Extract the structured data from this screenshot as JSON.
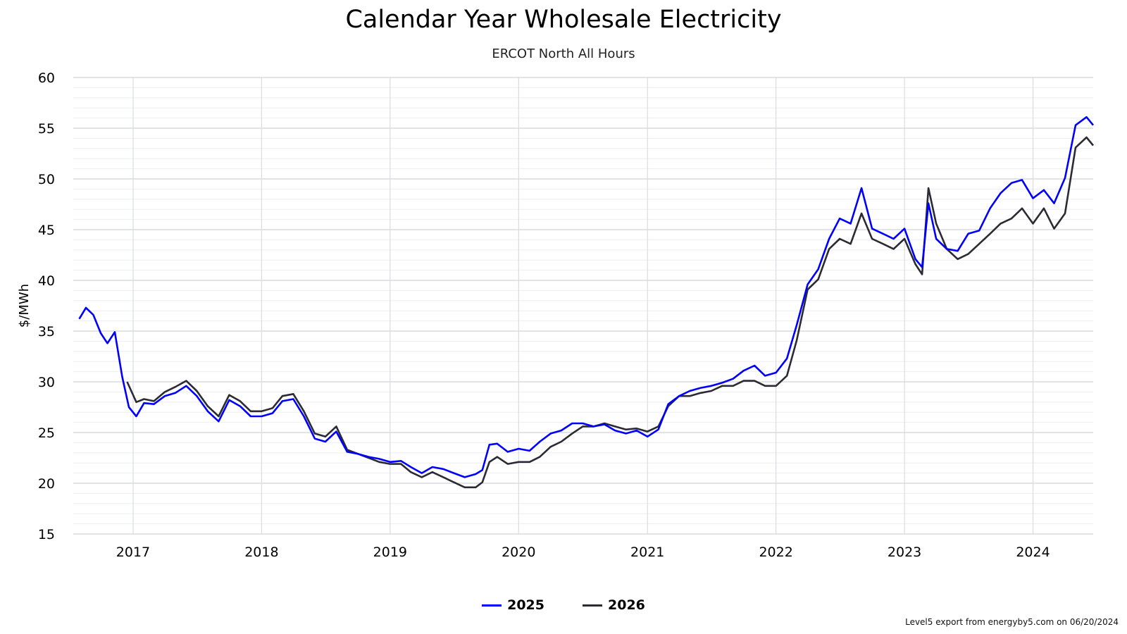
{
  "chart_data": {
    "type": "line",
    "title": "Calendar Year Wholesale Electricity",
    "subtitle": "ERCOT North All Hours",
    "xlabel": "",
    "ylabel": "$/MWh",
    "ylim": [
      15,
      60
    ],
    "yticks": [
      "15",
      "20",
      "25",
      "30",
      "35",
      "40",
      "45",
      "50",
      "55",
      "60"
    ],
    "xlim": [
      "2016-07-15",
      "2024-06-20"
    ],
    "xticks": [
      "2017",
      "2018",
      "2019",
      "2020",
      "2021",
      "2022",
      "2023",
      "2024"
    ],
    "grid": true,
    "legend_position": "bottom-center",
    "series": [
      {
        "name": "2025",
        "color": "#0000ff",
        "points": [
          [
            "2016-08-01",
            36.2
          ],
          [
            "2016-08-20",
            37.3
          ],
          [
            "2016-09-10",
            36.6
          ],
          [
            "2016-10-01",
            34.8
          ],
          [
            "2016-10-20",
            33.8
          ],
          [
            "2016-11-10",
            34.9
          ],
          [
            "2016-12-01",
            30.5
          ],
          [
            "2016-12-20",
            27.5
          ],
          [
            "2017-01-10",
            26.6
          ],
          [
            "2017-02-01",
            27.9
          ],
          [
            "2017-03-01",
            27.8
          ],
          [
            "2017-04-01",
            28.6
          ],
          [
            "2017-05-01",
            28.9
          ],
          [
            "2017-06-01",
            29.6
          ],
          [
            "2017-07-01",
            28.6
          ],
          [
            "2017-08-01",
            27.1
          ],
          [
            "2017-09-01",
            26.1
          ],
          [
            "2017-10-01",
            28.2
          ],
          [
            "2017-11-01",
            27.6
          ],
          [
            "2017-12-01",
            26.6
          ],
          [
            "2018-01-01",
            26.6
          ],
          [
            "2018-02-01",
            26.9
          ],
          [
            "2018-03-01",
            28.1
          ],
          [
            "2018-04-01",
            28.3
          ],
          [
            "2018-05-01",
            26.6
          ],
          [
            "2018-06-01",
            24.4
          ],
          [
            "2018-07-01",
            24.1
          ],
          [
            "2018-08-01",
            25.1
          ],
          [
            "2018-09-01",
            23.1
          ],
          [
            "2018-10-01",
            22.9
          ],
          [
            "2018-11-01",
            22.6
          ],
          [
            "2018-12-01",
            22.4
          ],
          [
            "2019-01-01",
            22.1
          ],
          [
            "2019-02-01",
            22.2
          ],
          [
            "2019-03-01",
            21.6
          ],
          [
            "2019-04-01",
            21.0
          ],
          [
            "2019-05-01",
            21.6
          ],
          [
            "2019-06-01",
            21.4
          ],
          [
            "2019-07-01",
            21.0
          ],
          [
            "2019-08-01",
            20.6
          ],
          [
            "2019-09-01",
            20.9
          ],
          [
            "2019-09-20",
            21.3
          ],
          [
            "2019-10-10",
            23.8
          ],
          [
            "2019-11-01",
            23.9
          ],
          [
            "2019-12-01",
            23.1
          ],
          [
            "2020-01-01",
            23.4
          ],
          [
            "2020-02-01",
            23.2
          ],
          [
            "2020-03-01",
            24.1
          ],
          [
            "2020-04-01",
            24.9
          ],
          [
            "2020-05-01",
            25.2
          ],
          [
            "2020-06-01",
            25.9
          ],
          [
            "2020-07-01",
            25.9
          ],
          [
            "2020-08-01",
            25.6
          ],
          [
            "2020-09-01",
            25.8
          ],
          [
            "2020-10-01",
            25.2
          ],
          [
            "2020-11-01",
            24.9
          ],
          [
            "2020-12-01",
            25.2
          ],
          [
            "2021-01-01",
            24.6
          ],
          [
            "2021-02-01",
            25.3
          ],
          [
            "2021-03-01",
            27.8
          ],
          [
            "2021-04-01",
            28.6
          ],
          [
            "2021-05-01",
            29.1
          ],
          [
            "2021-06-01",
            29.4
          ],
          [
            "2021-07-01",
            29.6
          ],
          [
            "2021-08-01",
            29.9
          ],
          [
            "2021-09-01",
            30.3
          ],
          [
            "2021-10-01",
            31.1
          ],
          [
            "2021-11-01",
            31.6
          ],
          [
            "2021-12-01",
            30.6
          ],
          [
            "2022-01-01",
            30.9
          ],
          [
            "2022-02-01",
            32.3
          ],
          [
            "2022-03-01",
            35.6
          ],
          [
            "2022-04-01",
            39.6
          ],
          [
            "2022-05-01",
            41.1
          ],
          [
            "2022-06-01",
            44.1
          ],
          [
            "2022-07-01",
            46.1
          ],
          [
            "2022-08-01",
            45.6
          ],
          [
            "2022-09-01",
            49.1
          ],
          [
            "2022-10-01",
            45.1
          ],
          [
            "2022-11-01",
            44.6
          ],
          [
            "2022-12-01",
            44.1
          ],
          [
            "2023-01-01",
            45.1
          ],
          [
            "2023-02-01",
            42.1
          ],
          [
            "2023-02-20",
            41.3
          ],
          [
            "2023-03-10",
            47.6
          ],
          [
            "2023-04-01",
            44.1
          ],
          [
            "2023-05-01",
            43.1
          ],
          [
            "2023-06-01",
            42.9
          ],
          [
            "2023-07-01",
            44.6
          ],
          [
            "2023-08-01",
            44.9
          ],
          [
            "2023-09-01",
            47.1
          ],
          [
            "2023-10-01",
            48.6
          ],
          [
            "2023-11-01",
            49.6
          ],
          [
            "2023-12-01",
            49.9
          ],
          [
            "2024-01-01",
            48.1
          ],
          [
            "2024-02-01",
            48.9
          ],
          [
            "2024-03-01",
            47.6
          ],
          [
            "2024-04-01",
            50.1
          ],
          [
            "2024-05-01",
            55.3
          ],
          [
            "2024-06-01",
            56.1
          ],
          [
            "2024-06-20",
            55.3
          ]
        ]
      },
      {
        "name": "2026",
        "color": "#2b2b33",
        "points": [
          [
            "2016-12-15",
            30.0
          ],
          [
            "2017-01-10",
            28.0
          ],
          [
            "2017-02-01",
            28.3
          ],
          [
            "2017-03-01",
            28.1
          ],
          [
            "2017-04-01",
            29.0
          ],
          [
            "2017-05-01",
            29.5
          ],
          [
            "2017-06-01",
            30.1
          ],
          [
            "2017-07-01",
            29.1
          ],
          [
            "2017-08-01",
            27.6
          ],
          [
            "2017-09-01",
            26.6
          ],
          [
            "2017-10-01",
            28.7
          ],
          [
            "2017-11-01",
            28.1
          ],
          [
            "2017-12-01",
            27.1
          ],
          [
            "2018-01-01",
            27.1
          ],
          [
            "2018-02-01",
            27.4
          ],
          [
            "2018-03-01",
            28.6
          ],
          [
            "2018-04-01",
            28.8
          ],
          [
            "2018-05-01",
            27.1
          ],
          [
            "2018-06-01",
            24.9
          ],
          [
            "2018-07-01",
            24.6
          ],
          [
            "2018-08-01",
            25.6
          ],
          [
            "2018-09-01",
            23.3
          ],
          [
            "2018-10-01",
            22.9
          ],
          [
            "2018-11-01",
            22.5
          ],
          [
            "2018-12-01",
            22.1
          ],
          [
            "2019-01-01",
            21.9
          ],
          [
            "2019-02-01",
            21.9
          ],
          [
            "2019-03-01",
            21.1
          ],
          [
            "2019-04-01",
            20.6
          ],
          [
            "2019-05-01",
            21.1
          ],
          [
            "2019-06-01",
            20.6
          ],
          [
            "2019-07-01",
            20.1
          ],
          [
            "2019-08-01",
            19.6
          ],
          [
            "2019-09-01",
            19.6
          ],
          [
            "2019-09-20",
            20.1
          ],
          [
            "2019-10-10",
            22.1
          ],
          [
            "2019-11-01",
            22.6
          ],
          [
            "2019-12-01",
            21.9
          ],
          [
            "2020-01-01",
            22.1
          ],
          [
            "2020-02-01",
            22.1
          ],
          [
            "2020-03-01",
            22.6
          ],
          [
            "2020-04-01",
            23.6
          ],
          [
            "2020-05-01",
            24.1
          ],
          [
            "2020-06-01",
            24.9
          ],
          [
            "2020-07-01",
            25.6
          ],
          [
            "2020-08-01",
            25.6
          ],
          [
            "2020-09-01",
            25.9
          ],
          [
            "2020-10-01",
            25.6
          ],
          [
            "2020-11-01",
            25.3
          ],
          [
            "2020-12-01",
            25.4
          ],
          [
            "2021-01-01",
            25.1
          ],
          [
            "2021-02-01",
            25.6
          ],
          [
            "2021-03-01",
            27.6
          ],
          [
            "2021-04-01",
            28.6
          ],
          [
            "2021-05-01",
            28.6
          ],
          [
            "2021-06-01",
            28.9
          ],
          [
            "2021-07-01",
            29.1
          ],
          [
            "2021-08-01",
            29.6
          ],
          [
            "2021-09-01",
            29.6
          ],
          [
            "2021-10-01",
            30.1
          ],
          [
            "2021-11-01",
            30.1
          ],
          [
            "2021-12-01",
            29.6
          ],
          [
            "2022-01-01",
            29.6
          ],
          [
            "2022-02-01",
            30.6
          ],
          [
            "2022-03-01",
            34.1
          ],
          [
            "2022-04-01",
            39.1
          ],
          [
            "2022-05-01",
            40.1
          ],
          [
            "2022-06-01",
            43.1
          ],
          [
            "2022-07-01",
            44.1
          ],
          [
            "2022-08-01",
            43.6
          ],
          [
            "2022-09-01",
            46.6
          ],
          [
            "2022-10-01",
            44.1
          ],
          [
            "2022-11-01",
            43.6
          ],
          [
            "2022-12-01",
            43.1
          ],
          [
            "2023-01-01",
            44.1
          ],
          [
            "2023-02-01",
            41.6
          ],
          [
            "2023-02-20",
            40.6
          ],
          [
            "2023-03-10",
            49.1
          ],
          [
            "2023-04-01",
            45.6
          ],
          [
            "2023-05-01",
            43.1
          ],
          [
            "2023-06-01",
            42.1
          ],
          [
            "2023-07-01",
            42.6
          ],
          [
            "2023-08-01",
            43.6
          ],
          [
            "2023-09-01",
            44.6
          ],
          [
            "2023-10-01",
            45.6
          ],
          [
            "2023-11-01",
            46.1
          ],
          [
            "2023-12-01",
            47.1
          ],
          [
            "2024-01-01",
            45.6
          ],
          [
            "2024-02-01",
            47.1
          ],
          [
            "2024-03-01",
            45.1
          ],
          [
            "2024-04-01",
            46.6
          ],
          [
            "2024-05-01",
            53.1
          ],
          [
            "2024-06-01",
            54.1
          ],
          [
            "2024-06-20",
            53.3
          ]
        ]
      }
    ]
  },
  "footer": {
    "credit": "Level5 export from energyby5.com on 06/20/2024"
  }
}
